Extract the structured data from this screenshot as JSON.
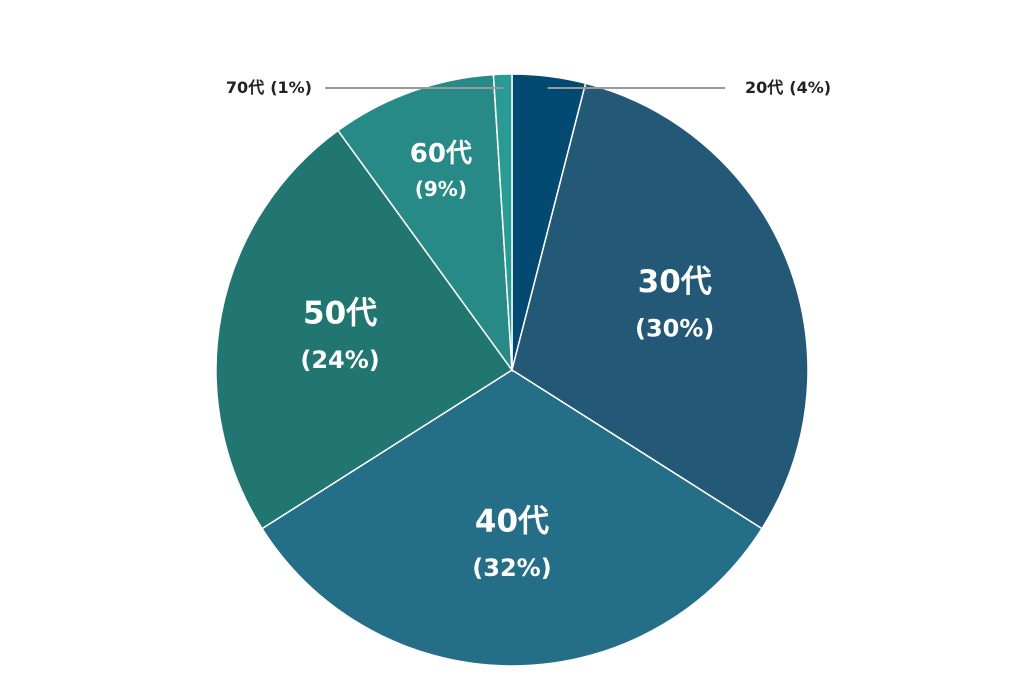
{
  "chart_data": {
    "type": "pie",
    "categories": [
      "20代",
      "30代",
      "40代",
      "50代",
      "60代",
      "70代"
    ],
    "values": [
      4,
      30,
      32,
      24,
      9,
      1
    ],
    "value_labels": [
      "(4%)",
      "(30%)",
      "(32%)",
      "(24%)",
      "(9%)",
      "(1%)"
    ],
    "colors": [
      "#034a73",
      "#245877",
      "#256e87",
      "#217672",
      "#278a87",
      "#2a9b94"
    ]
  }
}
